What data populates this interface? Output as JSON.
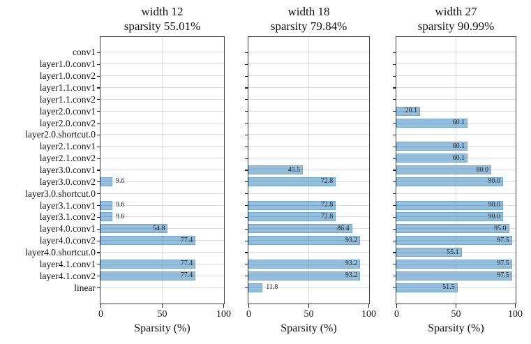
{
  "chart_data": {
    "type": "bar",
    "orientation": "horizontal",
    "xlabel": "Sparsity (%)",
    "xlim": [
      0,
      100
    ],
    "xticks": [
      0,
      50,
      100
    ],
    "xtick_labels": [
      "0",
      "50",
      "100"
    ],
    "grid": true,
    "value_labels": true,
    "categories": [
      "conv1",
      "layer1.0.conv1",
      "layer1.0.conv2",
      "layer1.1.conv1",
      "layer1.1.conv2",
      "layer2.0.conv1",
      "layer2.0.conv2",
      "layer2.0.shortcut.0",
      "layer2.1.conv1",
      "layer2.1.conv2",
      "layer3.0.conv1",
      "layer3.0.conv2",
      "layer3.0.shortcut.0",
      "layer3.1.conv1",
      "layer3.1.conv2",
      "layer4.0.conv1",
      "layer4.0.conv2",
      "layer4.0.shortcut.0",
      "layer4.1.conv1",
      "layer4.1.conv2",
      "linear"
    ],
    "series": [
      {
        "name": "width 12",
        "title_line1": "width 12",
        "title_line2": "sparsity 55.01%",
        "values": [
          0,
          0,
          0,
          0,
          0,
          0,
          0,
          0,
          0,
          0,
          0,
          9.6,
          0,
          9.6,
          9.6,
          54.8,
          77.4,
          0,
          77.4,
          77.4,
          0
        ]
      },
      {
        "name": "width 18",
        "title_line1": "width 18",
        "title_line2": "sparsity 79.84%",
        "values": [
          0,
          0,
          0,
          0,
          0,
          0,
          0,
          0,
          0,
          0,
          45.5,
          72.8,
          0,
          72.8,
          72.8,
          86.4,
          93.2,
          0,
          93.2,
          93.2,
          11.8
        ]
      },
      {
        "name": "width 27",
        "title_line1": "width 27",
        "title_line2": "sparsity 90.99%",
        "values": [
          0,
          0,
          0,
          0,
          0,
          20.1,
          60.1,
          0,
          60.1,
          60.1,
          80.0,
          90.0,
          0,
          90.0,
          90.0,
          95.0,
          97.5,
          55.1,
          97.5,
          97.5,
          51.5
        ]
      }
    ],
    "colors": {
      "bar_fill": "#1f77b4",
      "bar_opacity": 0.48,
      "grid": "#dcdcdc",
      "spine": "#3b3b3b",
      "text": "#111111",
      "value_text": "#222222"
    }
  }
}
